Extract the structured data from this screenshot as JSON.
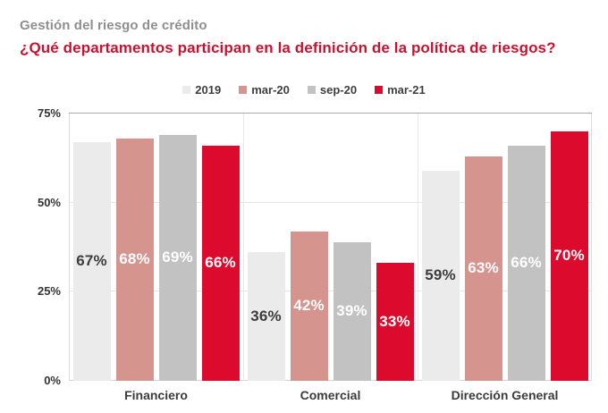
{
  "header": {
    "title": "Gestión del riesgo de crédito",
    "subtitle": "¿Qué departamentos participan en la definición de la política de riesgos?"
  },
  "colors": {
    "title_gray": "#8f8f8f",
    "subtitle_red": "#c81230",
    "series_2019": "#ebebeb",
    "series_mar20": "#d6948f",
    "series_sep20": "#c2c2c2",
    "series_mar21": "#dc0a2d",
    "dark_label": "#3d3d3d",
    "white_label": "#ffffff"
  },
  "chart_data": {
    "type": "bar",
    "title": "Gestión del riesgo de crédito",
    "subtitle": "¿Qué departamentos participan en la definición de la política de riesgos?",
    "categories": [
      "Financiero",
      "Comercial",
      "Dirección General"
    ],
    "series": [
      {
        "name": "2019",
        "color": "#ebebeb",
        "label_color": "#3d3d3d",
        "values": [
          67,
          36,
          59
        ],
        "labels": [
          "67%",
          "36%",
          "59%"
        ]
      },
      {
        "name": "mar-20",
        "color": "#d6948f",
        "label_color": "#ffffff",
        "values": [
          68,
          42,
          63
        ],
        "labels": [
          "68%",
          "42%",
          "63%"
        ]
      },
      {
        "name": "sep-20",
        "color": "#c2c2c2",
        "label_color": "#ffffff",
        "values": [
          69,
          39,
          66
        ],
        "labels": [
          "69%",
          "39%",
          "66%"
        ]
      },
      {
        "name": "mar-21",
        "color": "#dc0a2d",
        "label_color": "#ffffff",
        "values": [
          66,
          33,
          70
        ],
        "labels": [
          "66%",
          "33%",
          "70%"
        ]
      }
    ],
    "yticks": [
      {
        "label": "0%",
        "value": 0
      },
      {
        "label": "25%",
        "value": 25
      },
      {
        "label": "50%",
        "value": 50
      },
      {
        "label": "75%",
        "value": 75
      }
    ],
    "ylim": [
      0,
      75
    ],
    "grid": true,
    "legend_position": "top",
    "value_suffix": "%"
  }
}
